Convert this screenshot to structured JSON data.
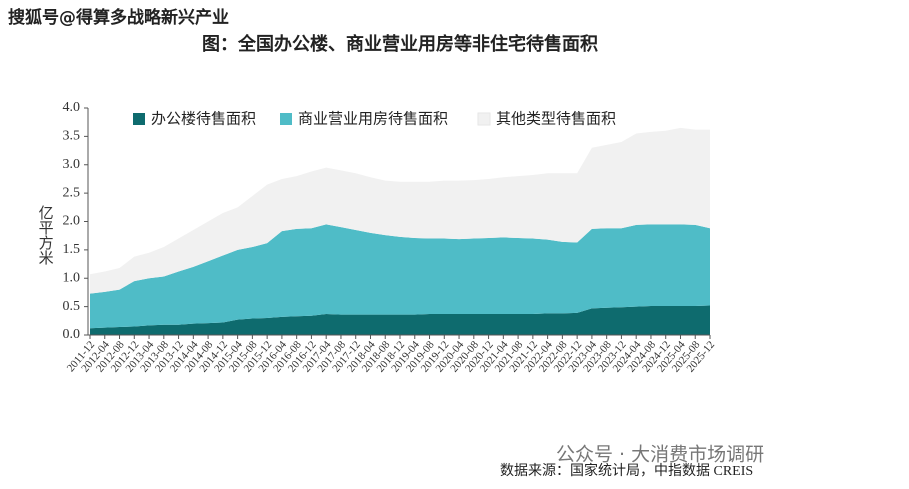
{
  "chart_data": {
    "type": "stacked_area",
    "watermark": "搜狐号@得算多战略新兴产业",
    "title": "图：全国办公楼、商业营业用房等非住宅待售面积",
    "ylabel": "亿平方米",
    "source": "数据来源：国家统计局，中指数据 CREIS",
    "footer_watermark": "公众号 · 大消费市场调研",
    "categories": [
      "2011-12",
      "2012-04",
      "2012-08",
      "2012-12",
      "2013-04",
      "2013-08",
      "2013-12",
      "2014-04",
      "2014-08",
      "2014-12",
      "2015-04",
      "2015-08",
      "2015-12",
      "2016-04",
      "2016-08",
      "2016-12",
      "2017-04",
      "2017-08",
      "2017-12",
      "2018-04",
      "2018-08",
      "2018-12",
      "2019-04",
      "2019-08",
      "2019-12",
      "2020-04",
      "2020-08",
      "2020-12",
      "2021-04",
      "2021-08",
      "2021-12",
      "2022-04",
      "2022-08",
      "2022-12",
      "2023-04",
      "2023-08",
      "2023-12",
      "2024-04",
      "2024-08",
      "2024-12",
      "2025-04",
      "2025-08",
      "2025-12"
    ],
    "series": [
      {
        "name": "办公楼待售面积",
        "color": "#0e6b6e",
        "values": [
          0.12,
          0.13,
          0.14,
          0.15,
          0.17,
          0.18,
          0.18,
          0.2,
          0.21,
          0.22,
          0.27,
          0.29,
          0.3,
          0.32,
          0.33,
          0.34,
          0.37,
          0.36,
          0.36,
          0.36,
          0.36,
          0.36,
          0.36,
          0.37,
          0.37,
          0.37,
          0.37,
          0.37,
          0.37,
          0.37,
          0.37,
          0.38,
          0.38,
          0.39,
          0.47,
          0.48,
          0.49,
          0.5,
          0.51,
          0.51,
          0.51,
          0.51,
          0.52
        ]
      },
      {
        "name": "商业营业用房待售面积",
        "color": "#4fbcc7",
        "values": [
          0.61,
          0.63,
          0.66,
          0.8,
          0.83,
          0.85,
          0.94,
          1.0,
          1.09,
          1.18,
          1.23,
          1.26,
          1.32,
          1.51,
          1.54,
          1.54,
          1.58,
          1.54,
          1.49,
          1.44,
          1.4,
          1.37,
          1.35,
          1.33,
          1.33,
          1.32,
          1.33,
          1.34,
          1.35,
          1.34,
          1.33,
          1.3,
          1.26,
          1.24,
          1.4,
          1.4,
          1.39,
          1.44,
          1.44,
          1.44,
          1.44,
          1.43,
          1.36
        ]
      },
      {
        "name": "其他类型待售面积",
        "color": "#f1f1f1",
        "values": [
          0.34,
          0.36,
          0.38,
          0.43,
          0.45,
          0.52,
          0.58,
          0.65,
          0.7,
          0.75,
          0.75,
          0.9,
          1.03,
          0.92,
          0.93,
          1.0,
          1.0,
          1.0,
          1.0,
          0.98,
          0.96,
          0.97,
          0.99,
          1.0,
          1.02,
          1.03,
          1.03,
          1.04,
          1.06,
          1.09,
          1.12,
          1.17,
          1.21,
          1.22,
          1.43,
          1.47,
          1.52,
          1.61,
          1.63,
          1.65,
          1.7,
          1.68,
          1.74
        ]
      }
    ],
    "ylim": [
      0,
      4
    ],
    "yticks": [
      {
        "value": 0,
        "label": "0.0"
      },
      {
        "value": 0.5,
        "label": "0.5"
      },
      {
        "value": 1,
        "label": "1.0"
      },
      {
        "value": 1.5,
        "label": "1.5"
      },
      {
        "value": 2,
        "label": "2.0"
      },
      {
        "value": 2.5,
        "label": "2.5"
      },
      {
        "value": 3,
        "label": "3.0"
      },
      {
        "value": 3.5,
        "label": "3.5"
      },
      {
        "value": 4,
        "label": "4.0"
      }
    ]
  }
}
